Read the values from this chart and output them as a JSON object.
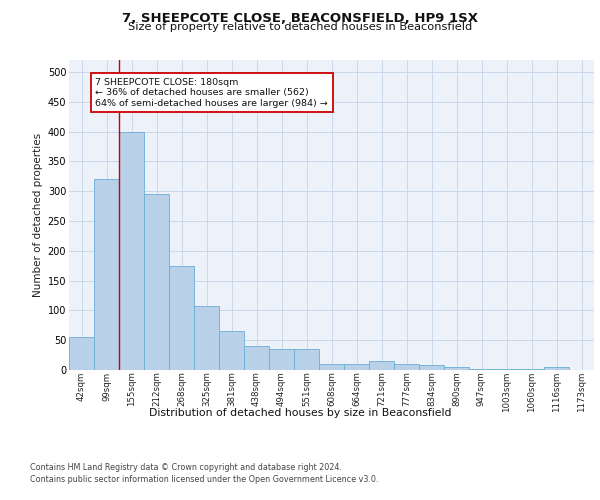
{
  "title_line1": "7, SHEEPCOTE CLOSE, BEACONSFIELD, HP9 1SX",
  "title_line2": "Size of property relative to detached houses in Beaconsfield",
  "xlabel": "Distribution of detached houses by size in Beaconsfield",
  "ylabel": "Number of detached properties",
  "categories": [
    "42sqm",
    "99sqm",
    "155sqm",
    "212sqm",
    "268sqm",
    "325sqm",
    "381sqm",
    "438sqm",
    "494sqm",
    "551sqm",
    "608sqm",
    "664sqm",
    "721sqm",
    "777sqm",
    "834sqm",
    "890sqm",
    "947sqm",
    "1003sqm",
    "1060sqm",
    "1116sqm",
    "1173sqm"
  ],
  "values": [
    55,
    320,
    400,
    295,
    175,
    107,
    65,
    40,
    36,
    36,
    10,
    10,
    15,
    10,
    8,
    5,
    2,
    1,
    1,
    5,
    0
  ],
  "bar_color": "#b8d0e8",
  "bar_edge_color": "#6aaed6",
  "grid_color": "#c8d8ea",
  "background_color": "#ffffff",
  "plot_background": "#edf2fa",
  "vline_x_index": 2,
  "vline_color": "#cc0000",
  "annotation_text": "7 SHEEPCOTE CLOSE: 180sqm\n← 36% of detached houses are smaller (562)\n64% of semi-detached houses are larger (984) →",
  "annotation_box_color": "#ffffff",
  "annotation_box_edge": "#cc0000",
  "ylim": [
    0,
    520
  ],
  "yticks": [
    0,
    50,
    100,
    150,
    200,
    250,
    300,
    350,
    400,
    450,
    500
  ],
  "footer_line1": "Contains HM Land Registry data © Crown copyright and database right 2024.",
  "footer_line2": "Contains public sector information licensed under the Open Government Licence v3.0."
}
